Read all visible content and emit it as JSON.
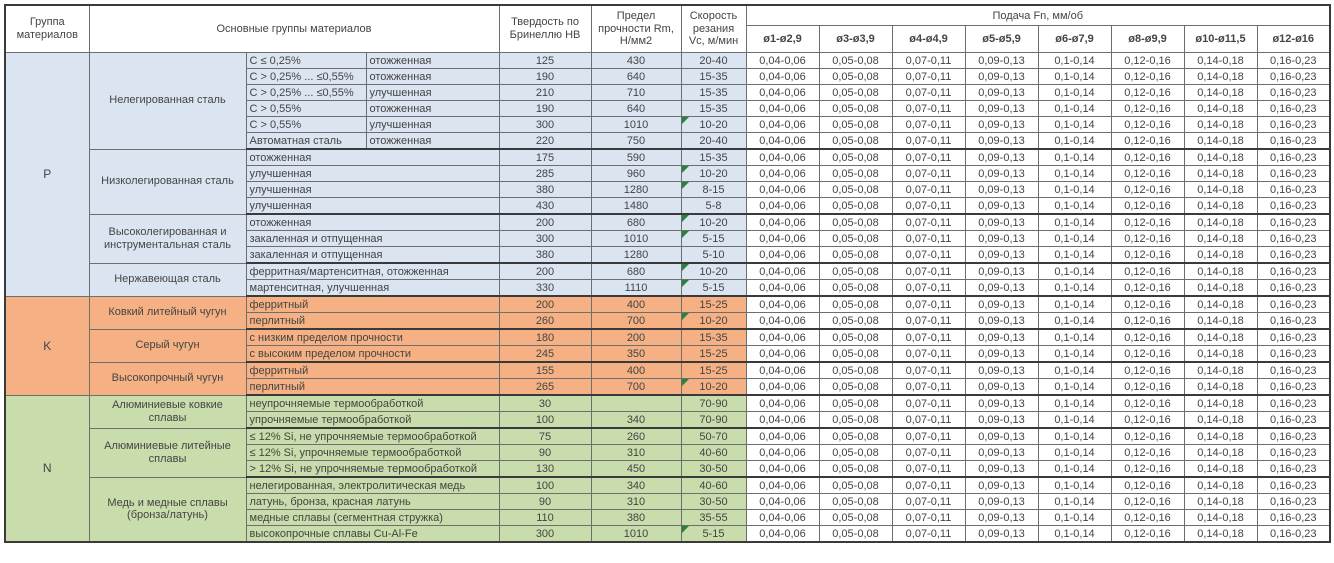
{
  "colors": {
    "section_p": "#dbe5f1",
    "section_k": "#f5b183",
    "section_n": "#c9dcab",
    "marker_green": "#278141"
  },
  "header": {
    "group_col": "Группа материалов",
    "main_groups_col": "Основные группы материалов",
    "hardness_col": "Твердость по Бринеллю HB",
    "strength_col": "Предел прочности Rm, Н/мм2",
    "speed_col": "Скорость резания Vc, м/мин",
    "feed_span": "Подача Fn, мм/об",
    "diameters": [
      "ø1-ø2,9",
      "ø3-ø3,9",
      "ø4-ø4,9",
      "ø5-ø5,9",
      "ø6-ø7,9",
      "ø8-ø9,9",
      "ø10-ø11,5",
      "ø12-ø16"
    ]
  },
  "feed_values": [
    "0,04-0,06",
    "0,05-0,08",
    "0,07-0,11",
    "0,09-0,13",
    "0,1-0,14",
    "0,12-0,16",
    "0,14-0,18",
    "0,16-0,23"
  ],
  "groups": [
    {
      "code": "P",
      "color_key": "section_p",
      "subgroups": [
        {
          "name": "Нелегированная сталь",
          "rows": [
            {
              "carbon": "C ≤ 0,25%",
              "state": "отожженная",
              "hb": "125",
              "rm": "430",
              "vc": "20-40",
              "marker": false
            },
            {
              "carbon": "C > 0,25% ... ≤0,55%",
              "state": "отожженная",
              "hb": "190",
              "rm": "640",
              "vc": "15-35",
              "marker": false
            },
            {
              "carbon": "C > 0,25% ... ≤0,55%",
              "state": "улучшенная",
              "hb": "210",
              "rm": "710",
              "vc": "15-35",
              "marker": false
            },
            {
              "carbon": "C > 0,55%",
              "state": "отожженная",
              "hb": "190",
              "rm": "640",
              "vc": "15-35",
              "marker": false
            },
            {
              "carbon": "C > 0,55%",
              "state": "улучшенная",
              "hb": "300",
              "rm": "1010",
              "vc": "10-20",
              "marker": true
            },
            {
              "carbon": "Автоматная сталь",
              "state": "отожженная",
              "hb": "220",
              "rm": "750",
              "vc": "20-40",
              "marker": false
            }
          ]
        },
        {
          "name": "Низколегированная сталь",
          "rows": [
            {
              "desc": "отожженная",
              "hb": "175",
              "rm": "590",
              "vc": "15-35",
              "marker": false
            },
            {
              "desc": "улучшенная",
              "hb": "285",
              "rm": "960",
              "vc": "10-20",
              "marker": true
            },
            {
              "desc": "улучшенная",
              "hb": "380",
              "rm": "1280",
              "vc": "8-15",
              "marker": true
            },
            {
              "desc": "улучшенная",
              "hb": "430",
              "rm": "1480",
              "vc": "5-8",
              "marker": false
            }
          ]
        },
        {
          "name": "Высоколегированная и инструментальная сталь",
          "rows": [
            {
              "desc": "отожженная",
              "hb": "200",
              "rm": "680",
              "vc": "10-20",
              "marker": true
            },
            {
              "desc": "закаленная и отпущенная",
              "hb": "300",
              "rm": "1010",
              "vc": "5-15",
              "marker": true
            },
            {
              "desc": "закаленная и отпущенная",
              "hb": "380",
              "rm": "1280",
              "vc": "5-10",
              "marker": false
            }
          ]
        },
        {
          "name": "Нержавеющая сталь",
          "rows": [
            {
              "desc": "ферритная/мартенситная, отожженная",
              "hb": "200",
              "rm": "680",
              "vc": "10-20",
              "marker": true
            },
            {
              "desc": "мартенситная, улучшенная",
              "hb": "330",
              "rm": "1110",
              "vc": "5-15",
              "marker": true
            }
          ]
        }
      ]
    },
    {
      "code": "K",
      "color_key": "section_k",
      "subgroups": [
        {
          "name": "Ковкий литейный чугун",
          "rows": [
            {
              "desc": "ферритный",
              "hb": "200",
              "rm": "400",
              "vc": "15-25",
              "marker": false
            },
            {
              "desc": "перлитный",
              "hb": "260",
              "rm": "700",
              "vc": "10-20",
              "marker": true
            }
          ]
        },
        {
          "name": "Серый чугун",
          "rows": [
            {
              "desc": "с низким пределом прочности",
              "hb": "180",
              "rm": "200",
              "vc": "15-35",
              "marker": false
            },
            {
              "desc": "с высоким пределом прочности",
              "hb": "245",
              "rm": "350",
              "vc": "15-25",
              "marker": false
            }
          ]
        },
        {
          "name": "Высокопрочный чугун",
          "rows": [
            {
              "desc": "ферритный",
              "hb": "155",
              "rm": "400",
              "vc": "15-25",
              "marker": false
            },
            {
              "desc": "перлитный",
              "hb": "265",
              "rm": "700",
              "vc": "10-20",
              "marker": true
            }
          ]
        }
      ]
    },
    {
      "code": "N",
      "color_key": "section_n",
      "subgroups": [
        {
          "name": "Алюминиевые ковкие сплавы",
          "rows": [
            {
              "desc": "неупрочняемые термообработкой",
              "hb": "30",
              "rm": "",
              "vc": "70-90",
              "marker": false
            },
            {
              "desc": "упрочняемые термообработкой",
              "hb": "100",
              "rm": "340",
              "vc": "70-90",
              "marker": false
            }
          ]
        },
        {
          "name": "Алюминиевые литейные сплавы",
          "rows": [
            {
              "desc": "≤ 12% Si, не упрочняемые термообработкой",
              "hb": "75",
              "rm": "260",
              "vc": "50-70",
              "marker": false
            },
            {
              "desc": "≤ 12% Si, упрочняемые термообработкой",
              "hb": "90",
              "rm": "310",
              "vc": "40-60",
              "marker": false
            },
            {
              "desc": "> 12% Si, не упрочняемые термообработкой",
              "hb": "130",
              "rm": "450",
              "vc": "30-50",
              "marker": false
            }
          ]
        },
        {
          "name": "Медь и медные сплавы (бронза/латунь)",
          "rows": [
            {
              "desc": "нелегированная, электролитическая медь",
              "hb": "100",
              "rm": "340",
              "vc": "40-60",
              "marker": false
            },
            {
              "desc": "латунь, бронза, красная латунь",
              "hb": "90",
              "rm": "310",
              "vc": "30-50",
              "marker": false
            },
            {
              "desc": "медные сплавы (сегментная стружка)",
              "hb": "110",
              "rm": "380",
              "vc": "35-55",
              "marker": false
            },
            {
              "desc": "высокопрочные сплавы Cu-Al-Fe",
              "hb": "300",
              "rm": "1010",
              "vc": "5-15",
              "marker": true
            }
          ]
        }
      ]
    }
  ]
}
